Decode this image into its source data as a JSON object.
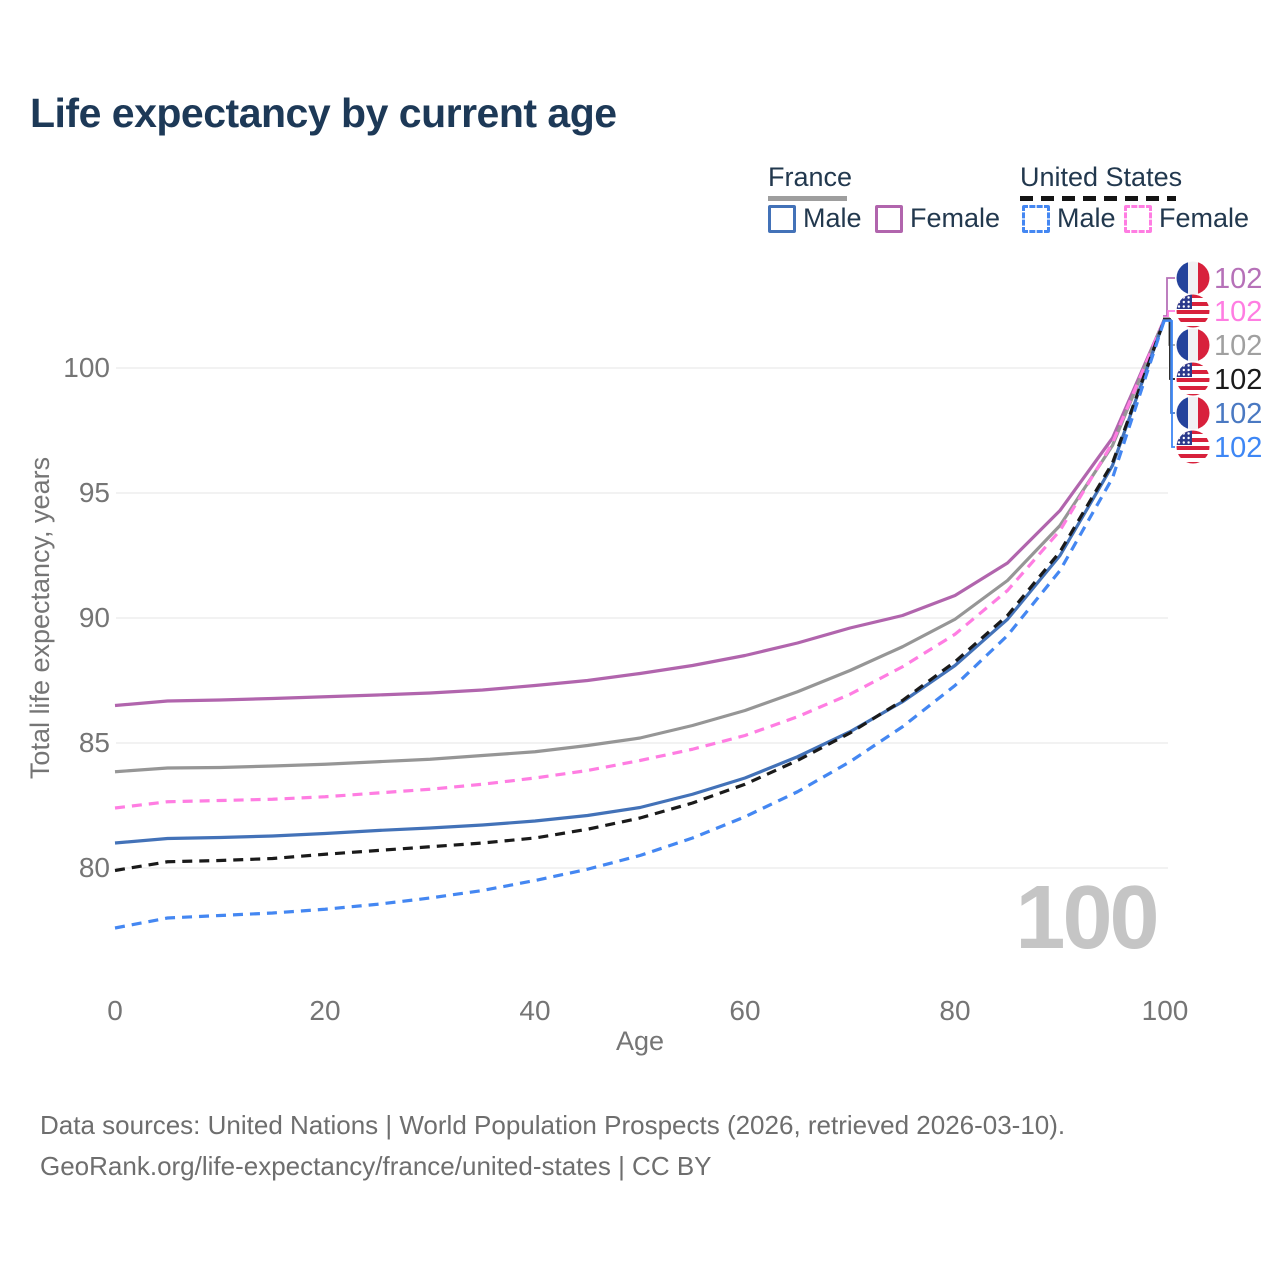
{
  "title": "Life expectancy by current age",
  "legend": {
    "groups": [
      {
        "name": "France",
        "line_style": "solid",
        "underline_color": "#9e9e9e",
        "items": [
          {
            "label": "Male",
            "color": "#4372b8",
            "dashed": false
          },
          {
            "label": "Female",
            "color": "#b165ad",
            "dashed": false
          }
        ]
      },
      {
        "name": "United States",
        "line_style": "dashed",
        "underline_color": "#141414",
        "items": [
          {
            "label": "Male",
            "color": "#4487f2",
            "dashed": true
          },
          {
            "label": "Female",
            "color": "#ff7de2",
            "dashed": true
          }
        ]
      }
    ]
  },
  "chart_data": {
    "type": "line",
    "title": "Life expectancy by current age",
    "xlabel": "Age",
    "ylabel": "Total life expectancy, years",
    "xticks": [
      0,
      20,
      40,
      60,
      80,
      100
    ],
    "yticks": [
      80,
      85,
      90,
      95,
      100
    ],
    "xlim": [
      0,
      100
    ],
    "ylim": [
      77,
      102.5
    ],
    "grid": "horizontal",
    "legend_position": "top-right",
    "age_counter": "100",
    "x": [
      0,
      5,
      10,
      15,
      20,
      25,
      30,
      35,
      40,
      45,
      50,
      55,
      60,
      65,
      70,
      75,
      80,
      85,
      90,
      95,
      100
    ],
    "series": [
      {
        "name": "France Female",
        "country": "france",
        "sex": "female",
        "color": "#b165ad",
        "dash": "solid",
        "values": [
          86.5,
          86.68,
          86.72,
          86.78,
          86.85,
          86.92,
          87.0,
          87.12,
          87.3,
          87.5,
          87.78,
          88.1,
          88.5,
          89.0,
          89.6,
          90.1,
          90.9,
          92.2,
          94.3,
          97.2,
          102
        ]
      },
      {
        "name": "France Both Sexes",
        "country": "france",
        "sex": "total",
        "color": "#969696",
        "dash": "solid",
        "values": [
          83.85,
          84.0,
          84.02,
          84.08,
          84.15,
          84.25,
          84.35,
          84.5,
          84.65,
          84.9,
          85.2,
          85.7,
          86.3,
          87.05,
          87.9,
          88.85,
          89.95,
          91.5,
          93.7,
          96.9,
          102
        ]
      },
      {
        "name": "United States Female",
        "country": "united-states",
        "sex": "female",
        "color": "#ff7de2",
        "dash": "dashed",
        "values": [
          82.4,
          82.65,
          82.7,
          82.75,
          82.85,
          83.0,
          83.15,
          83.35,
          83.6,
          83.9,
          84.3,
          84.75,
          85.3,
          86.05,
          86.95,
          88.05,
          89.35,
          91.1,
          93.5,
          97.0,
          102
        ]
      },
      {
        "name": "France Male",
        "country": "france",
        "sex": "male",
        "color": "#4372b8",
        "dash": "solid",
        "values": [
          81.0,
          81.18,
          81.22,
          81.28,
          81.38,
          81.5,
          81.6,
          81.72,
          81.88,
          82.1,
          82.42,
          82.95,
          83.6,
          84.45,
          85.45,
          86.65,
          88.1,
          89.95,
          92.5,
          96.1,
          102
        ]
      },
      {
        "name": "United States Both Sexes",
        "country": "united-states",
        "sex": "total",
        "color": "#1a1a1a",
        "dash": "dashed",
        "values": [
          79.9,
          80.25,
          80.3,
          80.38,
          80.55,
          80.7,
          80.85,
          81.0,
          81.2,
          81.55,
          82.0,
          82.6,
          83.35,
          84.3,
          85.4,
          86.7,
          88.25,
          90.1,
          92.65,
          96.2,
          102
        ]
      },
      {
        "name": "United States Male",
        "country": "united-states",
        "sex": "male",
        "color": "#4487f2",
        "dash": "dashed",
        "values": [
          77.6,
          78.0,
          78.1,
          78.2,
          78.35,
          78.55,
          78.8,
          79.1,
          79.5,
          79.95,
          80.5,
          81.2,
          82.05,
          83.05,
          84.25,
          85.65,
          87.3,
          89.3,
          91.9,
          95.6,
          102
        ]
      }
    ],
    "end_labels": [
      {
        "flag": "france",
        "value": "102",
        "color": "#b671b8"
      },
      {
        "flag": "united-states",
        "value": "102",
        "color": "#ff7de2"
      },
      {
        "flag": "france",
        "value": "102",
        "color": "#a0a0a0"
      },
      {
        "flag": "united-states",
        "value": "102",
        "color": "#1a1a1a"
      },
      {
        "flag": "france",
        "value": "102",
        "color": "#4a79c2"
      },
      {
        "flag": "united-states",
        "value": "102",
        "color": "#3e87f5"
      }
    ],
    "flag_colors": {
      "france_blue": "#24439c",
      "france_white": "#f1f1f3",
      "france_red": "#d8213c",
      "us_canton": "#2b3a8c",
      "us_red": "#d8213c",
      "us_white": "#ffffff"
    }
  },
  "footer": {
    "line1": "Data sources: United Nations | World Population Prospects (2026, retrieved 2026-03-10).",
    "line2": "GeoRank.org/life-expectancy/france/united-states | CC BY"
  }
}
